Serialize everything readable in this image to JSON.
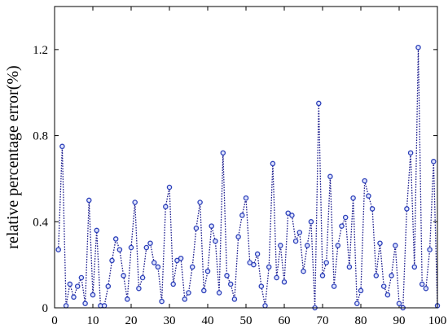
{
  "chart_data": {
    "type": "line",
    "title": "",
    "xlabel": "",
    "ylabel": "relative percentage error(%)",
    "xlim": [
      0,
      100
    ],
    "ylim": [
      0,
      1.4
    ],
    "x_ticks": [
      "0",
      "10",
      "20",
      "30",
      "40",
      "50",
      "60",
      "70",
      "80",
      "90",
      "100"
    ],
    "y_ticks": [
      "0",
      "0.4",
      "0.8",
      "1.2"
    ],
    "grid": false,
    "legend": "none",
    "line_style": "dotted",
    "marker": "circle",
    "colors": {
      "line": "#1a1a8c",
      "marker_edge": "#2b3fb8",
      "marker_fill": "#dfe4ff"
    },
    "series": [
      {
        "x": [
          1,
          2,
          3,
          4,
          5,
          6,
          7,
          8,
          9,
          10,
          11,
          12,
          13,
          14,
          15,
          16,
          17,
          18,
          19,
          20,
          21,
          22,
          23,
          24,
          25,
          26,
          27,
          28,
          29,
          30,
          31,
          32,
          33,
          34,
          35,
          36,
          37,
          38,
          39,
          40,
          41,
          42,
          43,
          44,
          45,
          46,
          47,
          48,
          49,
          50,
          51,
          52,
          53,
          54,
          55,
          56,
          57,
          58,
          59,
          60,
          61,
          62,
          63,
          64,
          65,
          66,
          67,
          68,
          69,
          70,
          71,
          72,
          73,
          74,
          75,
          76,
          77,
          78,
          79,
          80,
          81,
          82,
          83,
          84,
          85,
          86,
          87,
          88,
          89,
          90,
          91,
          92,
          93,
          94,
          95,
          96,
          97,
          98,
          99,
          100
        ],
        "values": [
          0.27,
          0.75,
          0.01,
          0.11,
          0.05,
          0.1,
          0.14,
          0.02,
          0.5,
          0.06,
          0.36,
          0.01,
          0.01,
          0.1,
          0.22,
          0.32,
          0.27,
          0.15,
          0.04,
          0.28,
          0.49,
          0.09,
          0.14,
          0.28,
          0.3,
          0.21,
          0.19,
          0.03,
          0.47,
          0.56,
          0.11,
          0.22,
          0.23,
          0.04,
          0.07,
          0.19,
          0.37,
          0.49,
          0.08,
          0.17,
          0.38,
          0.31,
          0.07,
          0.72,
          0.15,
          0.11,
          0.04,
          0.33,
          0.43,
          0.51,
          0.21,
          0.2,
          0.25,
          0.1,
          0.01,
          0.19,
          0.67,
          0.14,
          0.29,
          0.12,
          0.44,
          0.43,
          0.31,
          0.35,
          0.17,
          0.29,
          0.4,
          0.0,
          0.95,
          0.15,
          0.21,
          0.61,
          0.1,
          0.29,
          0.38,
          0.42,
          0.19,
          0.51,
          0.02,
          0.08,
          0.59,
          0.52,
          0.46,
          0.15,
          0.3,
          0.1,
          0.06,
          0.15,
          0.29,
          0.02,
          0.0,
          0.46,
          0.72,
          0.19,
          1.21,
          0.11,
          0.09,
          0.27,
          0.68,
          0.01
        ]
      }
    ]
  }
}
